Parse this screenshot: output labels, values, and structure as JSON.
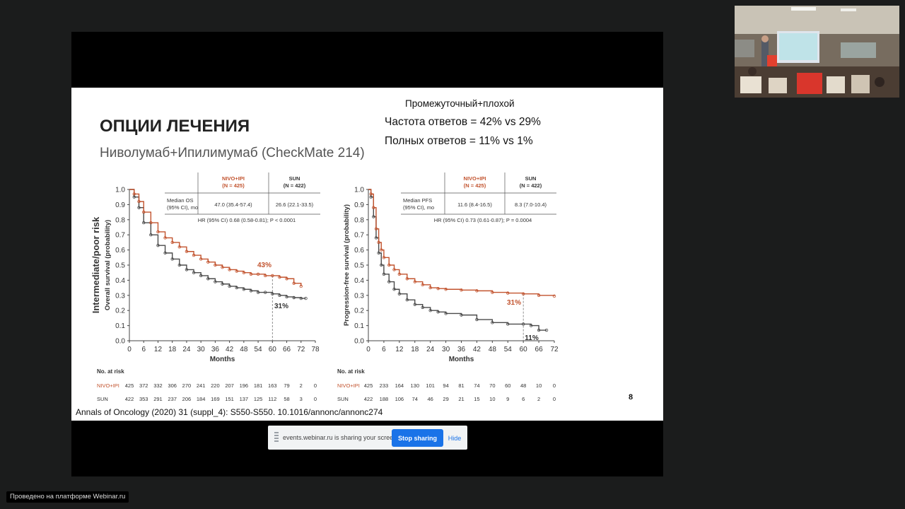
{
  "slide": {
    "title": "ОПЦИИ ЛЕЧЕНИЯ",
    "subtitle": "Ниволумаб+Ипилимумаб (CheckMate 214)",
    "callout_group": "Промежуточный+плохой",
    "callout_response": "Частота ответов = 42% vs 29%",
    "callout_complete": "Полных ответов = 11% vs 1%",
    "page_number": "8",
    "citation": "Annals of Oncology (2020) 31 (suppl_4): S550-S550. 10.1016/annonc/annonc274"
  },
  "share_bar": {
    "message": "events.webinar.ru is sharing your screen.",
    "stop_label": "Stop sharing",
    "hide_label": "Hide"
  },
  "footer": {
    "label": "Проведено на платформе Webinar.ru"
  },
  "colors": {
    "nivo_ipi": "#c2532e",
    "sun": "#4a4a4a",
    "accent": "#1a73e8"
  },
  "chart_data": [
    {
      "type": "line",
      "title": "Overall survival",
      "side_label": "Intermediate/poor risk",
      "ylabel": "Overall survival (probability)",
      "xlabel": "Months",
      "xlim": [
        0,
        78
      ],
      "ylim": [
        0,
        1.0
      ],
      "x_ticks": [
        "0",
        "6",
        "12",
        "18",
        "24",
        "30",
        "36",
        "42",
        "48",
        "54",
        "60",
        "66",
        "72",
        "78"
      ],
      "y_ticks": [
        "0.0",
        "0.1",
        "0.2",
        "0.3",
        "0.4",
        "0.5",
        "0.6",
        "0.7",
        "0.8",
        "0.9",
        "1.0"
      ],
      "cutoff_month": 60,
      "series": [
        {
          "name": "NIVO+IPI",
          "color": "#c2532e",
          "x": [
            0,
            2,
            4,
            6,
            9,
            12,
            15,
            18,
            21,
            24,
            27,
            30,
            33,
            36,
            39,
            42,
            45,
            48,
            51,
            54,
            57,
            60,
            63,
            66,
            69,
            72
          ],
          "y": [
            1.0,
            0.97,
            0.92,
            0.85,
            0.78,
            0.72,
            0.68,
            0.65,
            0.62,
            0.59,
            0.565,
            0.54,
            0.52,
            0.5,
            0.485,
            0.47,
            0.46,
            0.45,
            0.44,
            0.44,
            0.43,
            0.43,
            0.42,
            0.41,
            0.38,
            0.36
          ],
          "end_label": "43%"
        },
        {
          "name": "SUN",
          "color": "#4a4a4a",
          "x": [
            0,
            2,
            4,
            6,
            9,
            12,
            15,
            18,
            21,
            24,
            27,
            30,
            33,
            36,
            39,
            42,
            45,
            48,
            51,
            54,
            57,
            60,
            63,
            66,
            69,
            72,
            74
          ],
          "y": [
            1.0,
            0.95,
            0.88,
            0.78,
            0.7,
            0.63,
            0.58,
            0.54,
            0.5,
            0.47,
            0.45,
            0.43,
            0.41,
            0.39,
            0.375,
            0.36,
            0.35,
            0.34,
            0.33,
            0.32,
            0.32,
            0.31,
            0.3,
            0.29,
            0.285,
            0.28,
            0.28
          ],
          "end_label": "31%"
        }
      ],
      "table": {
        "col1_header": "NIVO+IPI\n(N = 425)",
        "col2_header": "SUN\n(N = 422)",
        "row_label": "Median OS\n(95% CI), mo",
        "col1_value": "47.0 (35.4-57.4)",
        "col2_value": "26.6 (22.1-33.5)",
        "hr_text": "HR (95% CI) 0.68 (0.58-0.81); P < 0.0001"
      },
      "risk_table": {
        "header": "No. at risk",
        "rows": [
          {
            "name": "NIVO+IPI",
            "values": [
              "425",
              "372",
              "332",
              "306",
              "270",
              "241",
              "220",
              "207",
              "196",
              "181",
              "163",
              "79",
              "2",
              "0"
            ]
          },
          {
            "name": "SUN",
            "values": [
              "422",
              "353",
              "291",
              "237",
              "206",
              "184",
              "169",
              "151",
              "137",
              "125",
              "112",
              "58",
              "3",
              "0"
            ]
          }
        ]
      }
    },
    {
      "type": "line",
      "title": "Progression-free survival",
      "ylabel": "Progression-free survival (probability)",
      "xlabel": "Months",
      "xlim": [
        0,
        72
      ],
      "ylim": [
        0,
        1.0
      ],
      "x_ticks": [
        "0",
        "6",
        "12",
        "18",
        "24",
        "30",
        "36",
        "42",
        "48",
        "54",
        "60",
        "66",
        "72"
      ],
      "y_ticks": [
        "0.0",
        "0.1",
        "0.2",
        "0.3",
        "0.4",
        "0.5",
        "0.6",
        "0.7",
        "0.8",
        "0.9",
        "1.0"
      ],
      "cutoff_month": 60,
      "series": [
        {
          "name": "NIVO+IPI",
          "color": "#c2532e",
          "x": [
            0,
            1,
            2,
            3,
            4,
            5,
            6,
            8,
            10,
            12,
            15,
            18,
            21,
            24,
            27,
            30,
            36,
            42,
            48,
            54,
            60,
            66,
            72
          ],
          "y": [
            1.0,
            0.97,
            0.88,
            0.74,
            0.65,
            0.6,
            0.55,
            0.5,
            0.47,
            0.44,
            0.41,
            0.39,
            0.37,
            0.35,
            0.345,
            0.34,
            0.335,
            0.33,
            0.32,
            0.315,
            0.31,
            0.3,
            0.295
          ],
          "end_label": "31%"
        },
        {
          "name": "SUN",
          "color": "#4a4a4a",
          "x": [
            0,
            1,
            2,
            3,
            4,
            5,
            6,
            8,
            10,
            12,
            15,
            18,
            21,
            24,
            27,
            30,
            36,
            42,
            48,
            54,
            60,
            63,
            66,
            69
          ],
          "y": [
            1.0,
            0.95,
            0.82,
            0.68,
            0.58,
            0.5,
            0.44,
            0.39,
            0.34,
            0.31,
            0.27,
            0.24,
            0.22,
            0.2,
            0.19,
            0.18,
            0.17,
            0.14,
            0.12,
            0.11,
            0.11,
            0.1,
            0.07,
            0.07
          ],
          "end_label": "11%"
        }
      ],
      "table": {
        "col1_header": "NIVO+IPI\n(N = 425)",
        "col2_header": "SUN\n(N = 422)",
        "row_label": "Median PFS\n(95% CI), mo",
        "col1_value": "11.6 (8.4-16.5)",
        "col2_value": "8.3 (7.0-10.4)",
        "hr_text": "HR (95% CI) 0.73 (0.61-0.87); P = 0.0004"
      },
      "risk_table": {
        "header": "No. at risk",
        "rows": [
          {
            "name": "NIVO+IPI",
            "values": [
              "425",
              "233",
              "164",
              "130",
              "101",
              "94",
              "81",
              "74",
              "70",
              "60",
              "48",
              "10",
              "0"
            ]
          },
          {
            "name": "SUN",
            "values": [
              "422",
              "188",
              "106",
              "74",
              "46",
              "29",
              "21",
              "15",
              "10",
              "9",
              "6",
              "2",
              "0"
            ]
          }
        ]
      }
    }
  ]
}
